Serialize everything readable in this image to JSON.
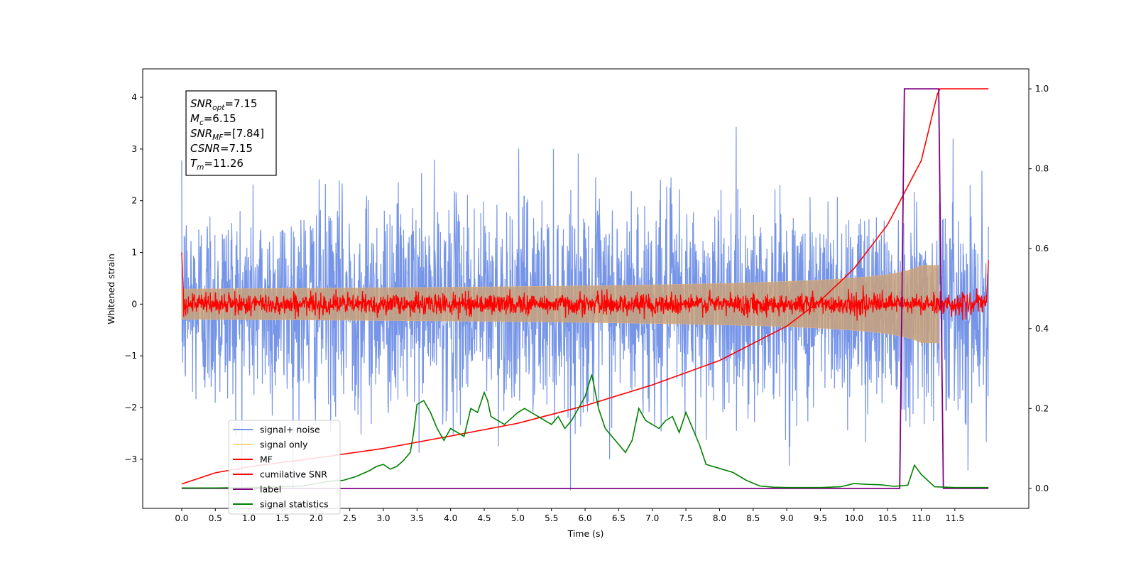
{
  "chart_data": {
    "type": "line",
    "xlabel": "Time (s)",
    "ylabel": "Whitened strain",
    "y2label": "",
    "xlim": [
      -0.58,
      12.6
    ],
    "ylim": [
      -3.95,
      4.55
    ],
    "y2lim": [
      -0.05,
      1.05
    ],
    "xticks": [
      "0.0",
      "0.5",
      "1.0",
      "1.5",
      "2.0",
      "2.5",
      "3.0",
      "3.5",
      "4.0",
      "4.5",
      "5.0",
      "5.5",
      "6.0",
      "6.5",
      "7.0",
      "7.5",
      "8.0",
      "8.5",
      "9.0",
      "9.5",
      "10.0",
      "10.5",
      "11.0",
      "11.5"
    ],
    "yticks": [
      "−3",
      "−2",
      "−1",
      "0",
      "1",
      "2",
      "3",
      "4"
    ],
    "y2ticks": [
      "0.0",
      "0.2",
      "0.4",
      "0.6",
      "0.8",
      "1.0"
    ],
    "legend": {
      "position": "lower-left",
      "entries": [
        {
          "label": "signal+ noise",
          "color": "#7695e8"
        },
        {
          "label": "signal only",
          "color": "#f7d68a"
        },
        {
          "label": "MF",
          "color": "#ff0000"
        },
        {
          "label": "cumilative SNR",
          "color": "#ff0000"
        },
        {
          "label": "label",
          "color": "#800080"
        },
        {
          "label": "signal statistics",
          "color": "#008000"
        }
      ]
    },
    "info_box": [
      {
        "base": "SNR",
        "sub": "opt",
        "value": "=7.15"
      },
      {
        "base": "M",
        "sub": "c",
        "value": "=6.15"
      },
      {
        "base": "SNR",
        "sub": "MF",
        "value": "=[7.84]"
      },
      {
        "base": "CSNR",
        "sub": "",
        "value": "=7.15"
      },
      {
        "base": "T",
        "sub": "m",
        "value": "=11.26"
      }
    ],
    "series": [
      {
        "name": "signal+ noise",
        "axis": "left",
        "color": "#7695e8",
        "x_range": [
          0.0,
          12.0
        ],
        "mean": 0.0,
        "std": 1.0,
        "y_range": [
          -3.6,
          4.2
        ]
      },
      {
        "name": "signal only",
        "axis": "left",
        "color": "#f7d68a",
        "x_range": [
          0.0,
          11.26
        ],
        "chirp_peak_time": 11.26,
        "peak_amplitude": 0.75
      },
      {
        "name": "MF",
        "axis": "left",
        "color": "#ff0000",
        "x_range": [
          0.0,
          12.0
        ],
        "noise_band": [
          -0.2,
          0.2
        ]
      },
      {
        "name": "cumilative SNR",
        "axis": "right",
        "color": "#ff0000",
        "x": [
          0.0,
          0.5,
          1.0,
          2.0,
          3.0,
          4.0,
          5.0,
          6.0,
          7.0,
          8.0,
          9.0,
          9.5,
          10.0,
          10.5,
          11.0,
          11.26,
          12.0
        ],
        "y": [
          0.011,
          0.039,
          0.054,
          0.076,
          0.1,
          0.131,
          0.163,
          0.207,
          0.259,
          0.32,
          0.406,
          0.47,
          0.55,
          0.66,
          0.82,
          1.0,
          1.0
        ]
      },
      {
        "name": "label",
        "axis": "right",
        "color": "#800080",
        "x": [
          0.0,
          10.68,
          10.75,
          11.26,
          11.33,
          12.0
        ],
        "y": [
          0.0,
          0.0,
          1.0,
          1.0,
          0.0,
          0.0
        ]
      },
      {
        "name": "signal statistics",
        "axis": "right",
        "color": "#008000",
        "x": [
          0.0,
          0.5,
          1.0,
          1.5,
          1.8,
          2.0,
          2.2,
          2.4,
          2.6,
          2.8,
          2.9,
          3.0,
          3.1,
          3.2,
          3.3,
          3.4,
          3.45,
          3.5,
          3.6,
          3.7,
          3.8,
          3.9,
          4.0,
          4.1,
          4.2,
          4.3,
          4.4,
          4.5,
          4.55,
          4.6,
          4.7,
          4.8,
          5.0,
          5.1,
          5.2,
          5.3,
          5.4,
          5.5,
          5.6,
          5.7,
          5.8,
          5.9,
          6.0,
          6.1,
          6.2,
          6.3,
          6.4,
          6.5,
          6.6,
          6.7,
          6.8,
          6.9,
          7.0,
          7.1,
          7.2,
          7.3,
          7.4,
          7.5,
          7.6,
          7.7,
          7.8,
          8.0,
          8.2,
          8.4,
          8.6,
          8.8,
          9.0,
          9.5,
          9.8,
          10.0,
          10.2,
          10.4,
          10.6,
          10.8,
          10.9,
          11.0,
          11.2,
          11.5,
          12.0
        ],
        "y": [
          0.001,
          0.001,
          0.002,
          0.004,
          0.006,
          0.012,
          0.018,
          0.02,
          0.03,
          0.045,
          0.055,
          0.06,
          0.048,
          0.055,
          0.07,
          0.09,
          0.14,
          0.21,
          0.22,
          0.19,
          0.15,
          0.12,
          0.15,
          0.14,
          0.13,
          0.2,
          0.19,
          0.24,
          0.22,
          0.18,
          0.17,
          0.16,
          0.19,
          0.2,
          0.19,
          0.18,
          0.17,
          0.16,
          0.18,
          0.15,
          0.17,
          0.2,
          0.23,
          0.285,
          0.2,
          0.15,
          0.13,
          0.11,
          0.09,
          0.12,
          0.2,
          0.17,
          0.16,
          0.15,
          0.17,
          0.18,
          0.14,
          0.19,
          0.15,
          0.11,
          0.06,
          0.05,
          0.04,
          0.02,
          0.006,
          0.003,
          0.002,
          0.002,
          0.004,
          0.012,
          0.01,
          0.009,
          0.005,
          0.008,
          0.058,
          0.035,
          0.004,
          0.002,
          0.002
        ]
      }
    ]
  }
}
